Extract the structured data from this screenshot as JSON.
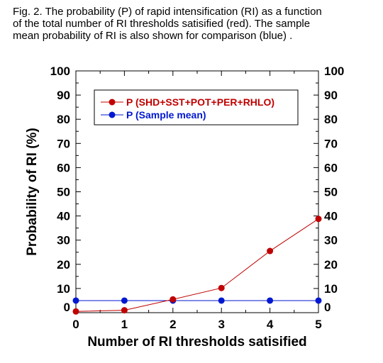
{
  "caption": "Fig.  2.  The probability (P) of rapid intensification (RI) as a function\nof  the total number of  RI thresholds satisified (red).  The sample\nmean probability of RI  is also shown for comparison (blue) .",
  "colors": {
    "series_red": "#c00000",
    "series_blue": "#0018d0",
    "axes": "#000000"
  },
  "chart_data": {
    "type": "line",
    "xlabel": "Number of RI thresholds satisified",
    "ylabel": "Probability of RI (%)",
    "xlim": [
      0,
      5
    ],
    "ylim": [
      0,
      100
    ],
    "x_ticks": [
      0,
      1,
      2,
      3,
      4,
      5
    ],
    "y_ticks": [
      0,
      10,
      20,
      30,
      40,
      50,
      60,
      70,
      80,
      90,
      100
    ],
    "x": [
      0,
      1,
      2,
      3,
      4,
      5
    ],
    "series": [
      {
        "name": "P (SHD+SST+POT+PER+RHLO)",
        "values": [
          0.5,
          1.0,
          5.5,
          10.2,
          25.5,
          38.8
        ],
        "color": "#c00000"
      },
      {
        "name": "P (Sample mean)",
        "values": [
          5.0,
          5.0,
          5.0,
          5.0,
          5.0,
          5.0
        ],
        "color": "#0018d0"
      }
    ],
    "legend_position": "top-left",
    "grid": false
  }
}
